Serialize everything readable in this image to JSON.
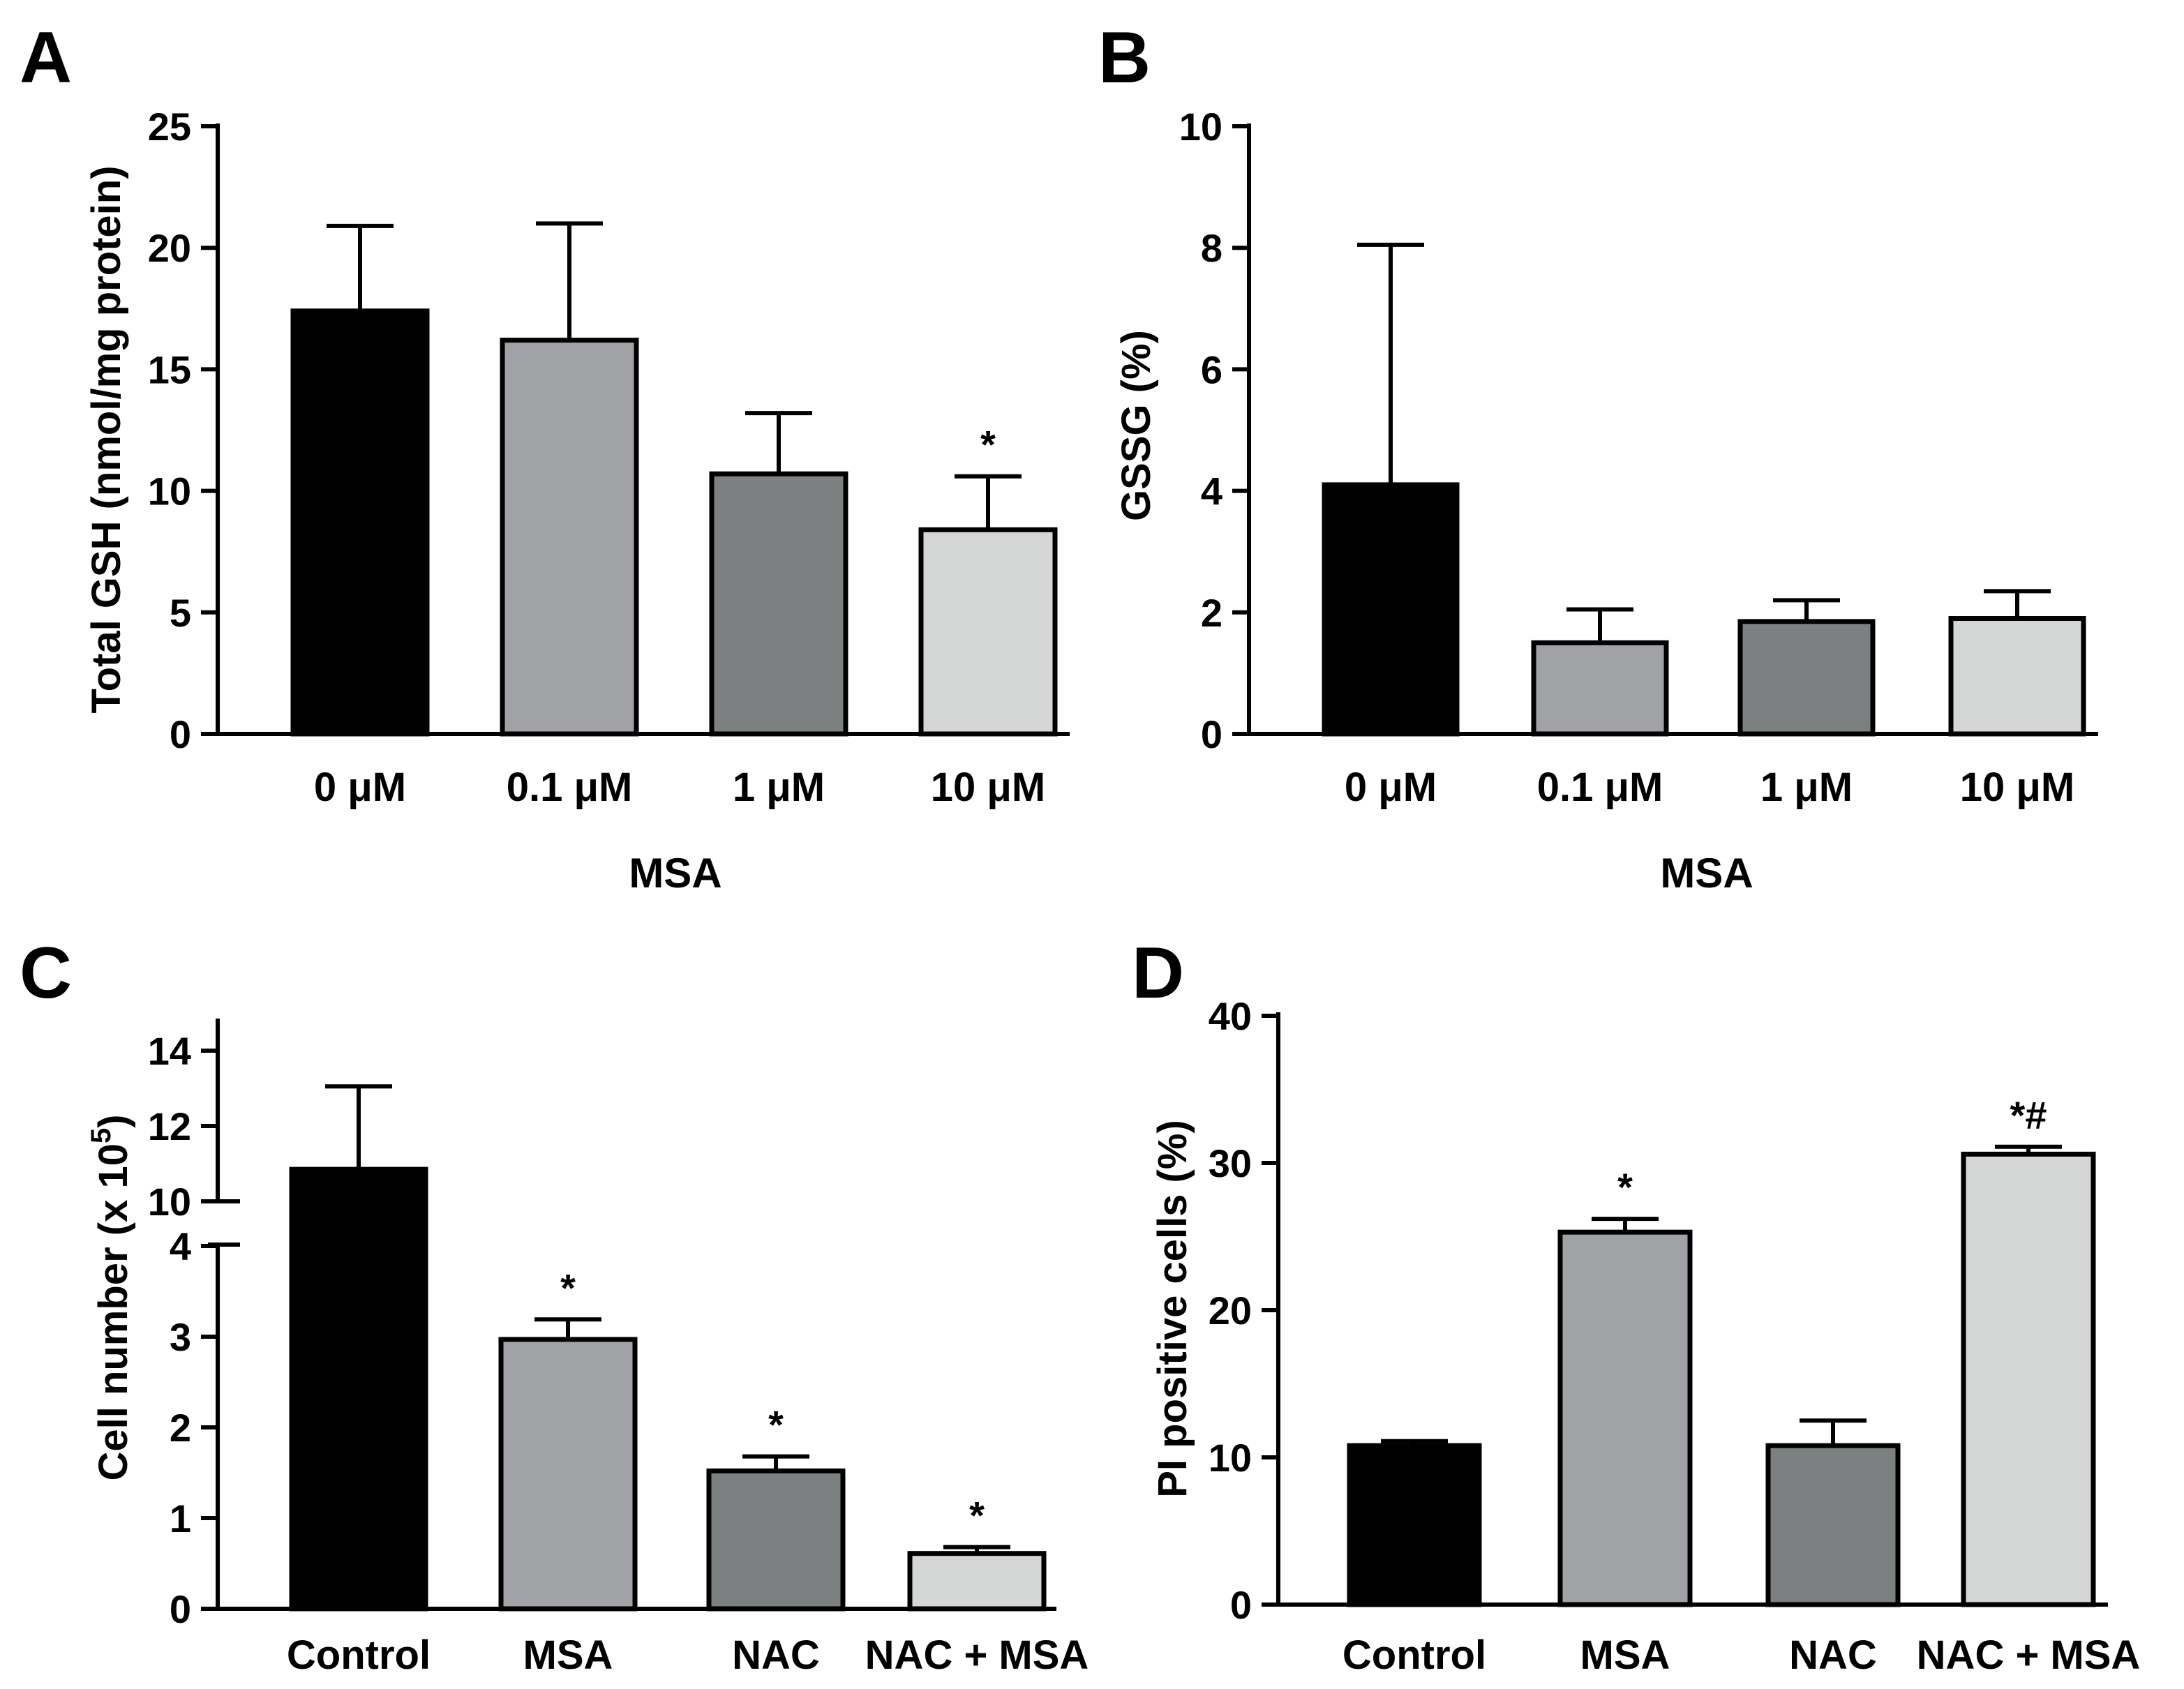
{
  "chart_data": [
    {
      "panel": "A",
      "type": "bar",
      "title": "",
      "xlabel": "MSA",
      "ylabel": "Total GSH (nmol/mg protein)",
      "ylim": [
        0,
        25
      ],
      "yticks": [
        "0",
        "5",
        "10",
        "15",
        "20",
        "25"
      ],
      "categories": [
        "0 μM",
        "0.1 μM",
        "1 μM",
        "10 μM"
      ],
      "values": [
        17.4,
        16.2,
        10.7,
        8.4
      ],
      "errors": [
        3.5,
        4.8,
        2.5,
        2.2
      ],
      "colors": [
        "#000000",
        "#a1a2a6",
        "#7d8081",
        "#d4d6d5"
      ],
      "annotations": [
        "",
        "",
        "",
        "*"
      ]
    },
    {
      "panel": "B",
      "type": "bar",
      "title": "",
      "xlabel": "MSA",
      "ylabel": "GSSG (%)",
      "ylim": [
        0,
        10
      ],
      "yticks": [
        "0",
        "2",
        "4",
        "6",
        "8",
        "10"
      ],
      "categories": [
        "0 μM",
        "0.1 μM",
        "1 μM",
        "10 μM"
      ],
      "values": [
        4.1,
        1.5,
        1.85,
        1.9
      ],
      "errors": [
        3.95,
        0.55,
        0.35,
        0.45
      ],
      "colors": [
        "#000000",
        "#a1a2a6",
        "#7d8081",
        "#d4d6d5"
      ],
      "annotations": [
        "",
        "",
        "",
        ""
      ]
    },
    {
      "panel": "C",
      "type": "bar",
      "title": "",
      "xlabel": "",
      "ylabel_main": "Cell number (x 10",
      "ylabel_sup": "5",
      "ylabel_close": ")",
      "broken_axis": {
        "lower": [
          0,
          4
        ],
        "upper": [
          10,
          14
        ]
      },
      "yticks_lower": [
        "0",
        "1",
        "2",
        "3",
        "4"
      ],
      "yticks_upper": [
        "10",
        "12",
        "14"
      ],
      "categories": [
        "Control",
        "MSA",
        "NAC",
        "NAC + MSA"
      ],
      "values": [
        10.85,
        2.97,
        1.52,
        0.61
      ],
      "errors": [
        2.2,
        0.22,
        0.16,
        0.07
      ],
      "colors": [
        "#000000",
        "#a1a2a6",
        "#7d8081",
        "#d4d6d5"
      ],
      "annotations": [
        "",
        "*",
        "*",
        "*"
      ]
    },
    {
      "panel": "D",
      "type": "bar",
      "title": "",
      "xlabel": "",
      "ylabel": "PI positive cells (%)",
      "ylim": [
        0,
        40
      ],
      "yticks": [
        "0",
        "10",
        "20",
        "30",
        "40"
      ],
      "categories": [
        "Control",
        "MSA",
        "NAC",
        "NAC + MSA"
      ],
      "values": [
        10.8,
        25.3,
        10.8,
        30.6
      ],
      "errors": [
        0.3,
        0.9,
        1.7,
        0.5
      ],
      "colors": [
        "#000000",
        "#a1a2a6",
        "#7d8081",
        "#d4d6d5"
      ],
      "annotations": [
        "",
        "*",
        "",
        "*#"
      ]
    }
  ]
}
